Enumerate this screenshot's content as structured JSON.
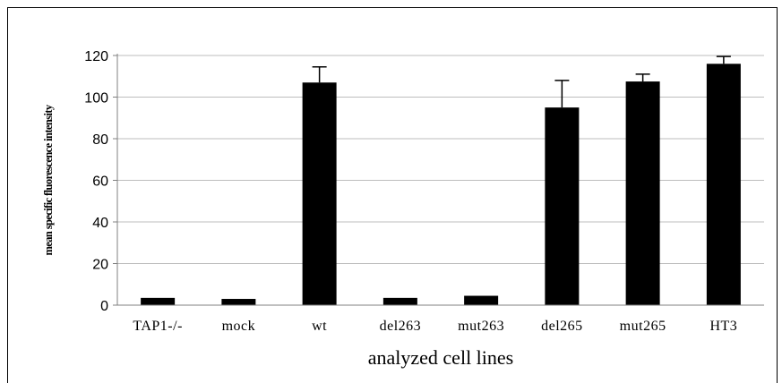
{
  "chart_data": {
    "type": "bar",
    "categories": [
      "TAP1-/-",
      "mock",
      "wt",
      "del263",
      "mut263",
      "del265",
      "mut265",
      "HT3"
    ],
    "values": [
      3.5,
      3,
      107,
      3.5,
      4.5,
      95,
      107.5,
      116
    ],
    "errors": [
      0.5,
      0.5,
      7.5,
      0.5,
      0.5,
      13,
      3.5,
      3.5
    ],
    "xlabel": "analyzed cell lines",
    "ylabel": "mean specific fluorescence intensity",
    "ylim": [
      0,
      120
    ],
    "yticks": [
      "0",
      "20",
      "40",
      "60",
      "80",
      "100",
      "120"
    ],
    "grid": true,
    "bar_color": "#000000",
    "grid_color": "#bdbdbd"
  }
}
